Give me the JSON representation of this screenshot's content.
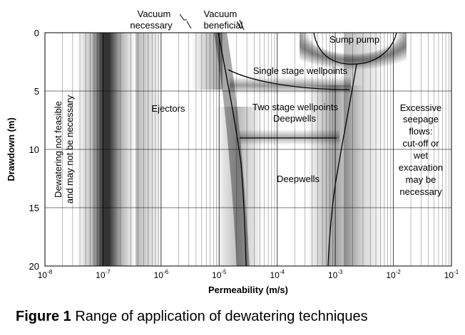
{
  "chart_data": {
    "type": "diagram",
    "x_axis": {
      "label": "Permeability (m/s)",
      "scale": "log",
      "range": [
        "1e-8",
        "1e-1"
      ],
      "tick_labels": [
        {
          "base": "10",
          "exp": "-8"
        },
        {
          "base": "10",
          "exp": "-7"
        },
        {
          "base": "10",
          "exp": "-6"
        },
        {
          "base": "10",
          "exp": "-5"
        },
        {
          "base": "10",
          "exp": "-4"
        },
        {
          "base": "10",
          "exp": "-3"
        },
        {
          "base": "10",
          "exp": "-2"
        },
        {
          "base": "10",
          "exp": "-1"
        }
      ]
    },
    "y_axis": {
      "label": "Drawdown (m)",
      "range": [
        0,
        20
      ],
      "inverted": true,
      "tick_labels": [
        "0",
        "5",
        "10",
        "15",
        "20"
      ]
    },
    "grid": true,
    "top_labels": {
      "vacuum_necessary": [
        "Vacuum",
        "necessary"
      ],
      "vacuum_beneficial": [
        "Vacuum",
        "beneficial"
      ]
    },
    "regions": {
      "not_feasible": [
        "Dewatering not feasible",
        "and may not be necessary"
      ],
      "ejectors": "Ejectors",
      "sump_pump": "Sump pump",
      "single_stage": "Single stage wellpoints",
      "two_stage": [
        "Two stage wellpoints",
        "Deepwells"
      ],
      "deepwells": "Deepwells",
      "excessive": [
        "Excessive",
        "seepage",
        "flows:",
        "cut-off or",
        "wet",
        "excavation",
        "may be",
        "necessary"
      ]
    }
  },
  "caption": {
    "figure": "Figure 1",
    "text": "Range of application of dewatering techniques"
  }
}
